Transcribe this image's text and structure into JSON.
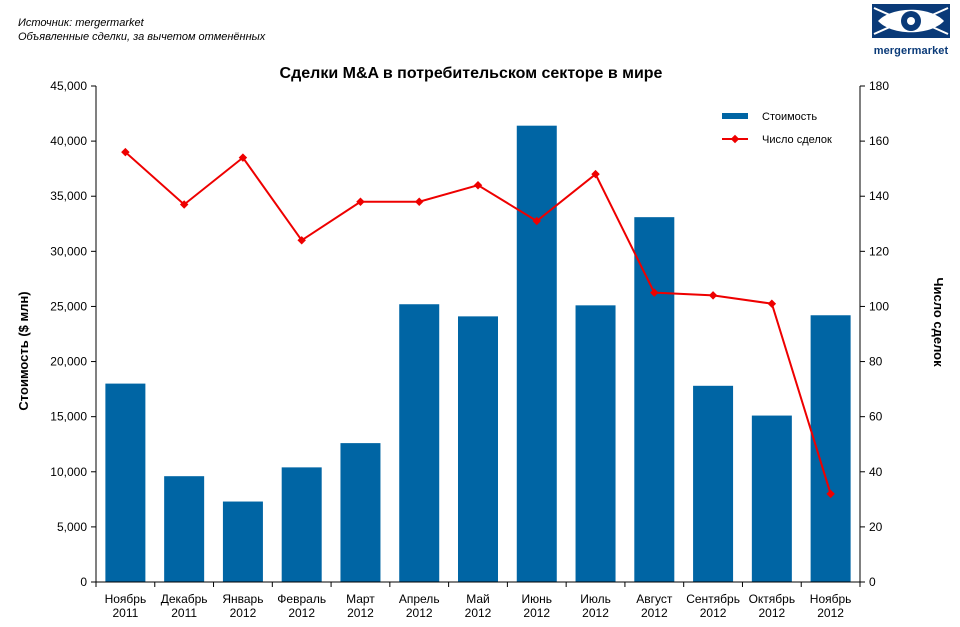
{
  "header": {
    "source_line": "Источник: mergermarket",
    "note_line": "Объявленные сделки, за вычетом отменённых"
  },
  "logo": {
    "text": "mergermarket",
    "icon": "eye-logo-icon"
  },
  "colors": {
    "bar": "#0065a4",
    "line": "#ee0000",
    "brand": "#0a3a78"
  },
  "chart_data": {
    "type": "bar",
    "title": "Сделки M&A в потребительском секторе в мире",
    "categories": [
      [
        "Ноябрь",
        "2011"
      ],
      [
        "Декабрь",
        "2011"
      ],
      [
        "Январь",
        "2012"
      ],
      [
        "Февраль",
        "2012"
      ],
      [
        "Март",
        "2012"
      ],
      [
        "Апрель",
        "2012"
      ],
      [
        "Май",
        "2012"
      ],
      [
        "Июнь",
        "2012"
      ],
      [
        "Июль",
        "2012"
      ],
      [
        "Август",
        "2012"
      ],
      [
        "Сентябрь",
        "2012"
      ],
      [
        "Октябрь",
        "2012"
      ],
      [
        "Ноябрь",
        "2012"
      ]
    ],
    "series": [
      {
        "name": "Стоимость",
        "type": "bar",
        "axis": "left",
        "values": [
          18000,
          9600,
          7300,
          10400,
          12600,
          25200,
          24100,
          41400,
          25100,
          33100,
          17800,
          15100,
          24200
        ]
      },
      {
        "name": "Число сделок",
        "type": "line",
        "axis": "right",
        "values": [
          156,
          137,
          154,
          124,
          138,
          138,
          144,
          131,
          148,
          105,
          104,
          101,
          32
        ]
      }
    ],
    "ylabel": "Стоимость ($ млн)",
    "y2label": "Число сделок",
    "ylim": [
      0,
      45000
    ],
    "y2lim": [
      0,
      180
    ],
    "yticks": [
      "0",
      "5,000",
      "10,000",
      "15,000",
      "20,000",
      "25,000",
      "30,000",
      "35,000",
      "40,000",
      "45,000"
    ],
    "y2ticks": [
      "0",
      "20",
      "40",
      "60",
      "80",
      "100",
      "120",
      "140",
      "160",
      "180"
    ],
    "grid": false,
    "legend": "top-right"
  }
}
